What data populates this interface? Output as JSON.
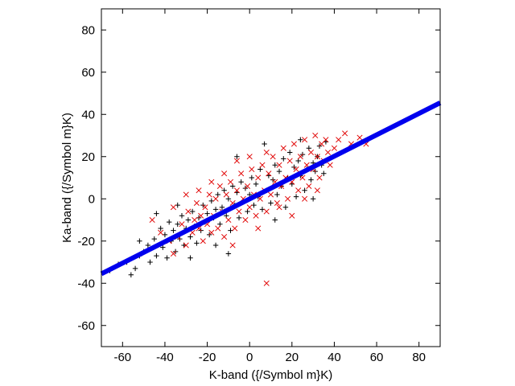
{
  "chart_data": {
    "type": "scatter",
    "xlabel": "K-band ({/Symbol m}K)",
    "ylabel": "Ka-band ({/Symbol m}K)",
    "xlim": [
      -70,
      90
    ],
    "ylim": [
      -70,
      90
    ],
    "xticks": [
      -60,
      -40,
      -20,
      0,
      20,
      40,
      60,
      80
    ],
    "yticks": [
      -60,
      -40,
      -20,
      0,
      20,
      40,
      60,
      80
    ],
    "xtick_labels": [
      "-60",
      "-40",
      "-20",
      "0",
      "20",
      "40",
      "60",
      "80"
    ],
    "ytick_labels": [
      "-60",
      "-40",
      "-20",
      "0",
      "20",
      "40",
      "60",
      "80"
    ],
    "grid": false,
    "legend": "none",
    "colors": {
      "black_marks": "#000000",
      "red_marks": "#e00000",
      "fit_line": "#0000ee",
      "axes": "#000000"
    },
    "fit_line": {
      "x": [
        -70,
        90
      ],
      "y": [
        -35.5,
        45.5
      ]
    },
    "series": [
      {
        "marker": "plus",
        "color": "#000000",
        "points": [
          [
            -66,
            -34
          ],
          [
            -62,
            -31
          ],
          [
            -58,
            -30
          ],
          [
            -56,
            -36
          ],
          [
            -54,
            -33
          ],
          [
            -52,
            -27
          ],
          [
            -50,
            -25
          ],
          [
            -48,
            -22
          ],
          [
            -47,
            -30
          ],
          [
            -45,
            -19
          ],
          [
            -44,
            -27
          ],
          [
            -42,
            -14
          ],
          [
            -41,
            -23
          ],
          [
            -40,
            -17
          ],
          [
            -39,
            -28
          ],
          [
            -38,
            -11
          ],
          [
            -37,
            -20
          ],
          [
            -36,
            -15
          ],
          [
            -35,
            -25
          ],
          [
            -34,
            -12
          ],
          [
            -33,
            -19
          ],
          [
            -32,
            -8
          ],
          [
            -31,
            -22
          ],
          [
            -30,
            -14
          ],
          [
            -29,
            -10
          ],
          [
            -28,
            -18
          ],
          [
            -27,
            -6
          ],
          [
            -26,
            -13
          ],
          [
            -25,
            -21
          ],
          [
            -24,
            -9
          ],
          [
            -23,
            -15
          ],
          [
            -22,
            -3
          ],
          [
            -21,
            -11
          ],
          [
            -20,
            -7
          ],
          [
            -19,
            -17
          ],
          [
            -18,
            -1
          ],
          [
            -17,
            -9
          ],
          [
            -16,
            -5
          ],
          [
            -15,
            2
          ],
          [
            -14,
            -12
          ],
          [
            -13,
            -4
          ],
          [
            -12,
            4
          ],
          [
            -11,
            -8
          ],
          [
            -10,
            0
          ],
          [
            -9,
            -15
          ],
          [
            -8,
            6
          ],
          [
            -7,
            -3
          ],
          [
            -6,
            3
          ],
          [
            -5,
            -9
          ],
          [
            -4,
            8
          ],
          [
            -3,
            -1
          ],
          [
            -2,
            5
          ],
          [
            -1,
            -6
          ],
          [
            0,
            2
          ],
          [
            1,
            10
          ],
          [
            2,
            -3
          ],
          [
            3,
            7
          ],
          [
            4,
            1
          ],
          [
            5,
            14
          ],
          [
            6,
            -5
          ],
          [
            7,
            26
          ],
          [
            8,
            4
          ],
          [
            9,
            11
          ],
          [
            10,
            -2
          ],
          [
            11,
            9
          ],
          [
            12,
            16
          ],
          [
            13,
            2
          ],
          [
            14,
            13
          ],
          [
            15,
            6
          ],
          [
            16,
            19
          ],
          [
            17,
            -4
          ],
          [
            18,
            10
          ],
          [
            19,
            22
          ],
          [
            20,
            7
          ],
          [
            21,
            15
          ],
          [
            22,
            1
          ],
          [
            23,
            18
          ],
          [
            24,
            11
          ],
          [
            25,
            21
          ],
          [
            26,
            4
          ],
          [
            27,
            14
          ],
          [
            28,
            24
          ],
          [
            29,
            9
          ],
          [
            30,
            17
          ],
          [
            31,
            13
          ],
          [
            32,
            20
          ],
          [
            33,
            25
          ],
          [
            34,
            16
          ],
          [
            35,
            12
          ],
          [
            36,
            27
          ],
          [
            -28,
            -28
          ],
          [
            -52,
            -20
          ],
          [
            -44,
            -7
          ],
          [
            -10,
            -26
          ],
          [
            -6,
            20
          ],
          [
            12,
            -10
          ],
          [
            24,
            28
          ],
          [
            30,
            0
          ],
          [
            -34,
            -3
          ],
          [
            -16,
            -22
          ]
        ]
      },
      {
        "marker": "cross",
        "color": "#e00000",
        "points": [
          [
            -46,
            -10
          ],
          [
            -42,
            -16
          ],
          [
            -38,
            -20
          ],
          [
            -36,
            -4
          ],
          [
            -34,
            -18
          ],
          [
            -32,
            -12
          ],
          [
            -30,
            -22
          ],
          [
            -29,
            -6
          ],
          [
            -27,
            -16
          ],
          [
            -26,
            -10
          ],
          [
            -25,
            -2
          ],
          [
            -24,
            -14
          ],
          [
            -23,
            -8
          ],
          [
            -22,
            -20
          ],
          [
            -21,
            -4
          ],
          [
            -20,
            -12
          ],
          [
            -19,
            2
          ],
          [
            -18,
            -16
          ],
          [
            -17,
            -8
          ],
          [
            -16,
            0
          ],
          [
            -15,
            -14
          ],
          [
            -14,
            6
          ],
          [
            -13,
            -6
          ],
          [
            -12,
            -18
          ],
          [
            -11,
            2
          ],
          [
            -10,
            -10
          ],
          [
            -9,
            8
          ],
          [
            -8,
            -2
          ],
          [
            -7,
            -14
          ],
          [
            -6,
            4
          ],
          [
            -5,
            -6
          ],
          [
            -4,
            12
          ],
          [
            -3,
            0
          ],
          [
            -2,
            -10
          ],
          [
            -1,
            6
          ],
          [
            0,
            -4
          ],
          [
            1,
            14
          ],
          [
            2,
            2
          ],
          [
            3,
            -8
          ],
          [
            4,
            10
          ],
          [
            5,
            0
          ],
          [
            6,
            16
          ],
          [
            7,
            4
          ],
          [
            8,
            -6
          ],
          [
            9,
            12
          ],
          [
            10,
            2
          ],
          [
            11,
            20
          ],
          [
            12,
            8
          ],
          [
            13,
            -2
          ],
          [
            14,
            16
          ],
          [
            15,
            6
          ],
          [
            16,
            24
          ],
          [
            17,
            10
          ],
          [
            18,
            0
          ],
          [
            19,
            18
          ],
          [
            20,
            8
          ],
          [
            21,
            26
          ],
          [
            22,
            14
          ],
          [
            23,
            4
          ],
          [
            24,
            20
          ],
          [
            25,
            10
          ],
          [
            26,
            28
          ],
          [
            27,
            16
          ],
          [
            28,
            6
          ],
          [
            29,
            22
          ],
          [
            30,
            14
          ],
          [
            31,
            30
          ],
          [
            32,
            20
          ],
          [
            33,
            10
          ],
          [
            34,
            26
          ],
          [
            35,
            18
          ],
          [
            36,
            28
          ],
          [
            37,
            22
          ],
          [
            38,
            16
          ],
          [
            40,
            24
          ],
          [
            42,
            28
          ],
          [
            45,
            31
          ],
          [
            48,
            26
          ],
          [
            52,
            29
          ],
          [
            55,
            26
          ],
          [
            -12,
            12
          ],
          [
            -18,
            8
          ],
          [
            -24,
            4
          ],
          [
            -6,
            18
          ],
          [
            0,
            20
          ],
          [
            8,
            22
          ],
          [
            -30,
            2
          ],
          [
            -36,
            -26
          ],
          [
            20,
            -8
          ],
          [
            26,
            0
          ],
          [
            -8,
            -22
          ],
          [
            4,
            -14
          ],
          [
            14,
            -4
          ],
          [
            32,
            4
          ],
          [
            8,
            -40
          ]
        ]
      }
    ]
  }
}
